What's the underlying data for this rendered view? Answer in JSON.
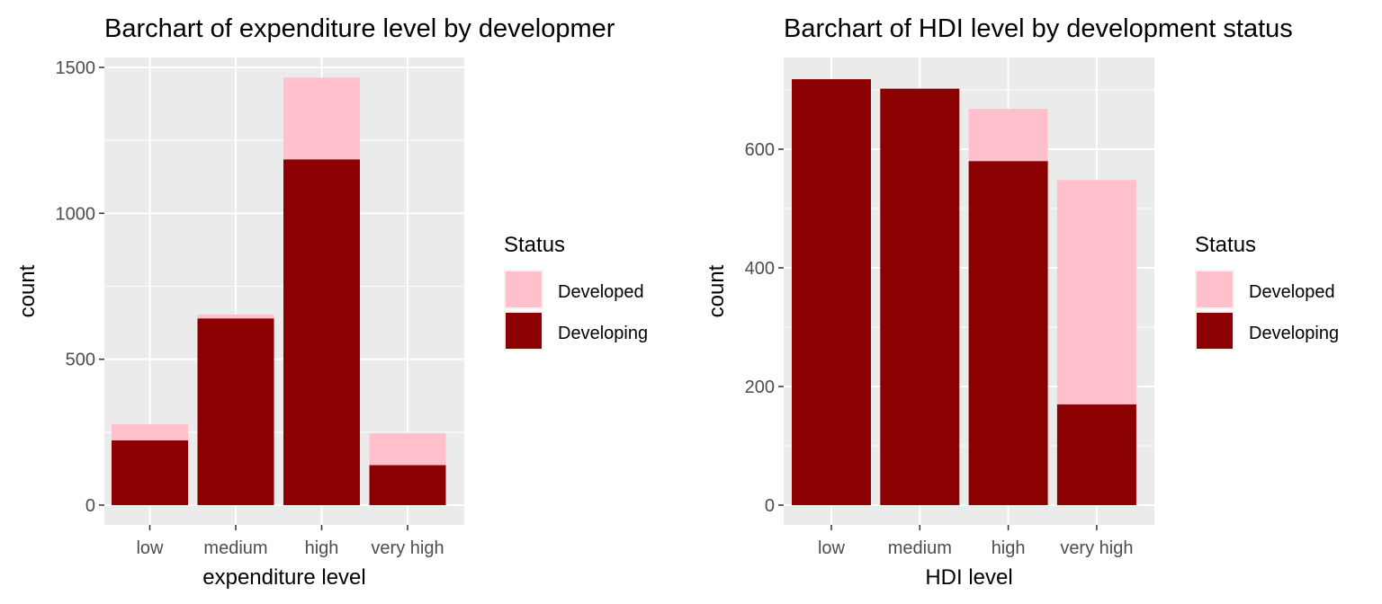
{
  "chart_data": [
    {
      "type": "bar",
      "stacked": true,
      "title": "Barchart of expenditure level by developmer",
      "xlabel": "expenditure level",
      "ylabel": "count",
      "categories": [
        "low",
        "medium",
        "high",
        "very high"
      ],
      "series": [
        {
          "name": "Developed",
          "values": [
            55,
            13,
            280,
            110
          ],
          "color": "#FFC0CB"
        },
        {
          "name": "Developing",
          "values": [
            222,
            640,
            1185,
            137
          ],
          "color": "#8B0000"
        }
      ],
      "ylim": [
        0,
        1500
      ],
      "yticks": [
        0,
        500,
        1000,
        1500
      ],
      "legend": {
        "title": "Status",
        "position": "right"
      },
      "grid": true
    },
    {
      "type": "bar",
      "stacked": true,
      "title": "Barchart of HDI level by development status",
      "xlabel": "HDI level",
      "ylabel": "count",
      "categories": [
        "low",
        "medium",
        "high",
        "very high"
      ],
      "series": [
        {
          "name": "Developed",
          "values": [
            0,
            0,
            88,
            378
          ],
          "color": "#FFC0CB"
        },
        {
          "name": "Developing",
          "values": [
            718,
            702,
            580,
            170
          ],
          "color": "#8B0000"
        }
      ],
      "ylim": [
        0,
        720
      ],
      "yticks": [
        0,
        200,
        400,
        600
      ],
      "legend": {
        "title": "Status",
        "position": "right"
      },
      "grid": true
    }
  ]
}
